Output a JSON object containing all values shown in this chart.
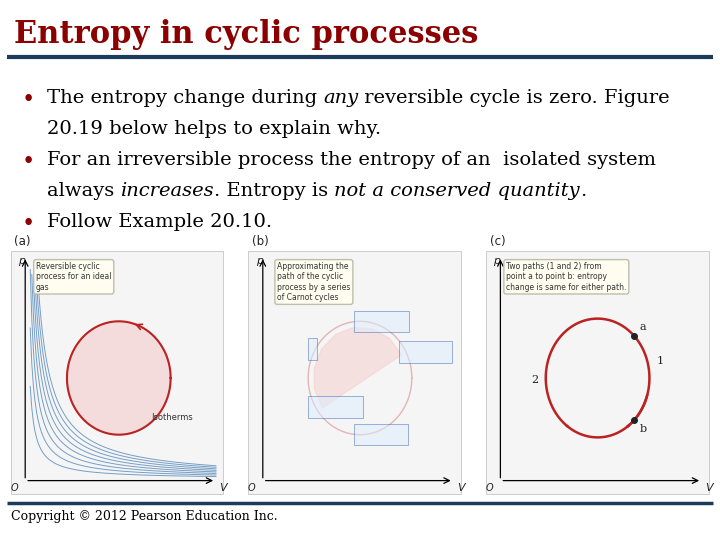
{
  "title": "Entropy in cyclic processes",
  "title_color": "#8B0000",
  "title_fontsize": 22,
  "divider_color": "#1C3A5A",
  "divider_linewidth": 3,
  "background_color": "#FFFFFF",
  "bullet_color": "#8B0000",
  "bullet_fontsize": 14,
  "text_color": "#000000",
  "bullet1_line1_parts": [
    {
      "text": "The entropy change during ",
      "style": "normal"
    },
    {
      "text": "any",
      "style": "italic"
    },
    {
      "text": " reversible cycle is zero. Figure",
      "style": "normal"
    }
  ],
  "bullet1_line2": "20.19 below helps to explain why.",
  "bullet2_line1": "For an irreversible process the entropy of an  isolated system",
  "bullet2_line2_parts": [
    {
      "text": "always ",
      "style": "normal"
    },
    {
      "text": "increases",
      "style": "italic"
    },
    {
      "text": ". Entropy is ",
      "style": "normal"
    },
    {
      "text": "not a conserved quantity",
      "style": "italic"
    },
    {
      "text": ".",
      "style": "normal"
    }
  ],
  "bullet3": "Follow Example 20.10.",
  "footer_text": "Copyright © 2012 Pearson Education Inc.",
  "footer_color": "#000000",
  "footer_fontsize": 9,
  "footer_divider_color": "#1C3A5A"
}
